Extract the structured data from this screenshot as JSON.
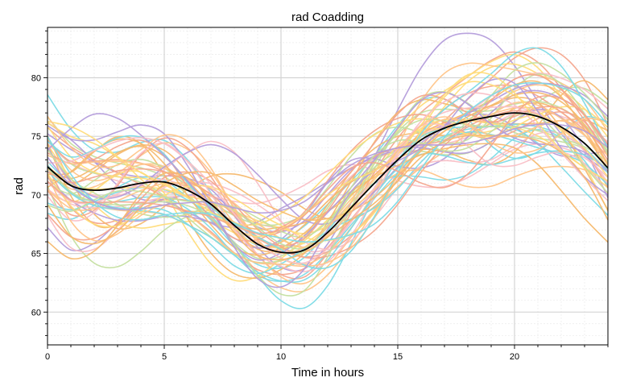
{
  "chart_data": {
    "type": "line",
    "title": "rad Coadding",
    "xlabel": "Time in hours",
    "ylabel": "rad",
    "xlim": [
      0,
      24
    ],
    "ylim": [
      57.2,
      84.3
    ],
    "xticks": [
      0,
      5,
      10,
      15,
      20
    ],
    "yticks": [
      60,
      65,
      70,
      75,
      80
    ],
    "grid": true,
    "palette": [
      "#f4a68e",
      "#7ddbe6",
      "#f6b96e",
      "#b49ddb",
      "#ffdc7a",
      "#c4dfa0",
      "#f9bfc6",
      "#ffc58a"
    ],
    "mean_color": "#000000",
    "mean": {
      "name": "mean",
      "x": [
        0,
        1,
        2,
        3,
        4,
        5,
        6,
        7,
        8,
        9,
        10,
        11,
        12,
        13,
        14,
        15,
        16,
        17,
        18,
        19,
        20,
        21,
        22,
        23,
        24
      ],
      "y": [
        72.4,
        70.8,
        70.4,
        70.6,
        71.0,
        71.1,
        70.4,
        69.2,
        67.4,
        65.8,
        65.1,
        65.3,
        66.8,
        68.9,
        71.0,
        73.0,
        74.7,
        75.7,
        76.3,
        76.7,
        77.0,
        76.7,
        75.8,
        74.4,
        72.3
      ]
    },
    "series_count": 60
  }
}
